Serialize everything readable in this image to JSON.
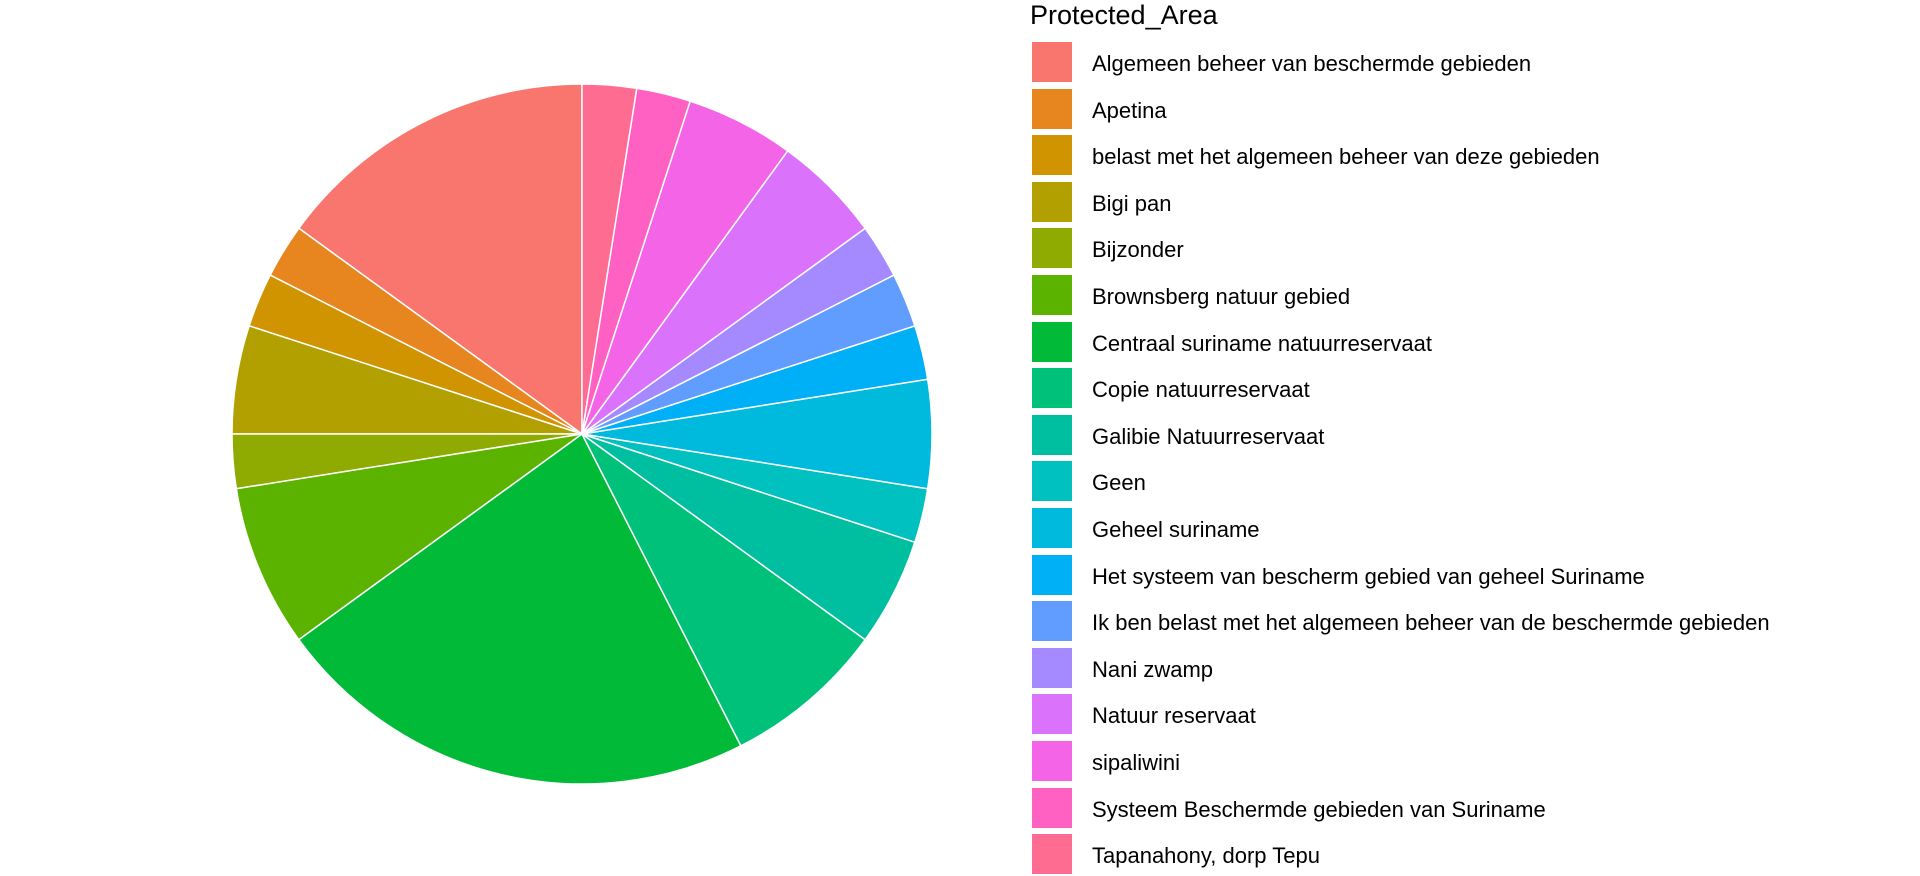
{
  "chart_data": {
    "type": "pie",
    "legend_title": "Protected_Area",
    "legend_position": "right",
    "start_angle": "top, clockwise",
    "slices": [
      {
        "label": "Algemeen beheer van beschermde gebieden",
        "value": 6,
        "color": "#F8766D"
      },
      {
        "label": "Apetina",
        "value": 1,
        "color": "#E7851E"
      },
      {
        "label": "belast met het algemeen beheer van deze gebieden",
        "value": 1,
        "color": "#D09400"
      },
      {
        "label": "Bigi pan",
        "value": 2,
        "color": "#B2A000"
      },
      {
        "label": "Bijzonder",
        "value": 1,
        "color": "#8FAA00"
      },
      {
        "label": "Brownsberg natuur gebied",
        "value": 3,
        "color": "#5BB300"
      },
      {
        "label": "Centraal suriname  natuurreservaat",
        "value": 9,
        "color": "#00BA38"
      },
      {
        "label": "Copie natuurreservaat",
        "value": 3,
        "color": "#00C17A"
      },
      {
        "label": "Galibie Natuurreservaat",
        "value": 2,
        "color": "#00BFA0"
      },
      {
        "label": "Geen",
        "value": 1,
        "color": "#00C0C0"
      },
      {
        "label": "Geheel suriname",
        "value": 2,
        "color": "#00BADE"
      },
      {
        "label": "Het systeem van bescherm gebied van geheel Suriname",
        "value": 1,
        "color": "#00B0F6"
      },
      {
        "label": "Ik ben belast met het algemeen beheer van de beschermde gebieden",
        "value": 1,
        "color": "#619CFF"
      },
      {
        "label": "Nani zwamp",
        "value": 1,
        "color": "#A58AFF"
      },
      {
        "label": "Natuur reservaat",
        "value": 2,
        "color": "#DB72FB"
      },
      {
        "label": "sipaliwini",
        "value": 2,
        "color": "#F365E6"
      },
      {
        "label": "Systeem Beschermde gebieden van Suriname",
        "value": 1,
        "color": "#FF61C3"
      },
      {
        "label": "Tapanahony, dorp Tepu",
        "value": 1,
        "color": "#FF6C91"
      }
    ]
  }
}
